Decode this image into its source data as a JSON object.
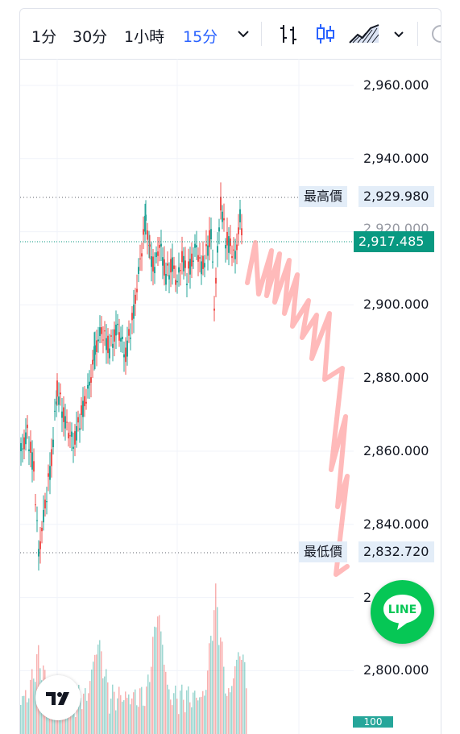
{
  "toolbar": {
    "timeframes": [
      "1分",
      "30分",
      "1小時",
      "15分"
    ],
    "active_timeframe": "15分",
    "icons": [
      "chevron-down-icon",
      "bars-chart-icon",
      "candles-chart-icon",
      "area-chart-icon",
      "chevron-down-icon",
      "settings-icon"
    ]
  },
  "price_axis": {
    "labels": [
      "2,960.000",
      "2,940.000",
      "2,900.000",
      "2,880.000",
      "2,860.000",
      "2,840.000",
      "2,800.000"
    ],
    "partial_labels": [
      "2,920.000",
      "2"
    ]
  },
  "markers": {
    "high_label": "最高價",
    "high_value": "2,929.980",
    "low_label": "最低價",
    "low_value": "2,832.720",
    "current_value": "2,917.485"
  },
  "volume_tag": "100",
  "line_button": "LINE",
  "colors": {
    "up": "#26a69a",
    "down": "#ef5350",
    "accent": "#2962ff",
    "current": "#089981",
    "line_green": "#06c755"
  }
}
